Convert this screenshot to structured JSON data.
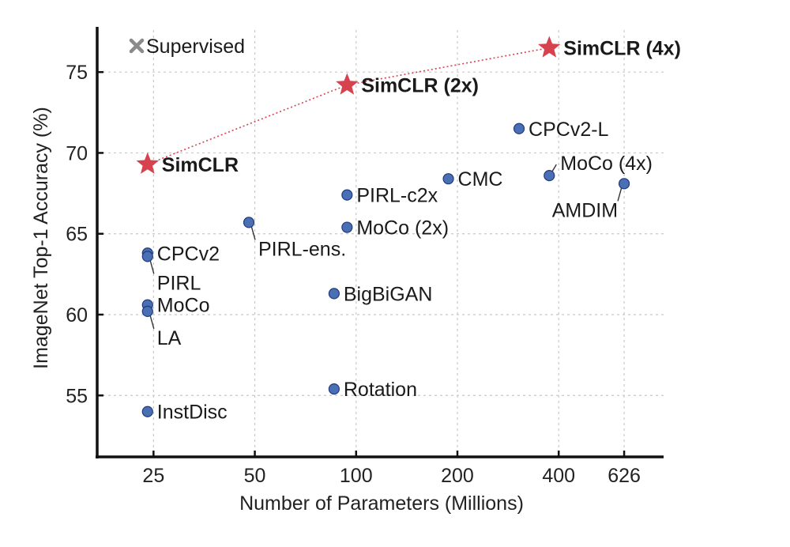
{
  "chart_data": {
    "type": "scatter",
    "xlabel": "Number of Parameters (Millions)",
    "ylabel": "ImageNet Top-1 Accuracy (%)",
    "x_scale": "log",
    "xlim": [
      17,
      820
    ],
    "ylim": [
      51.2,
      77.6
    ],
    "x_ticks": [
      {
        "value": 25,
        "label": "25"
      },
      {
        "value": 50,
        "label": "50"
      },
      {
        "value": 100,
        "label": "100"
      },
      {
        "value": 200,
        "label": "200"
      },
      {
        "value": 400,
        "label": "400"
      },
      {
        "value": 626,
        "label": "626"
      }
    ],
    "y_ticks": [
      {
        "value": 55,
        "label": "55"
      },
      {
        "value": 60,
        "label": "60"
      },
      {
        "value": 65,
        "label": "65"
      },
      {
        "value": 70,
        "label": "70"
      },
      {
        "value": 75,
        "label": "75"
      }
    ],
    "grid": true,
    "colors": {
      "points": "#4a6fb5",
      "simclr": "#d6434f",
      "supervised": "#8a8a8a"
    },
    "legend_entry": {
      "label": "Supervised",
      "marker": "x",
      "color": "#8a8a8a",
      "position": "top-left"
    },
    "simclr_series": [
      {
        "label": "SimCLR",
        "x": 24,
        "y": 69.3
      },
      {
        "label": "SimCLR (2x)",
        "x": 94,
        "y": 74.2
      },
      {
        "label": "SimCLR (4x)",
        "x": 375,
        "y": 76.5
      }
    ],
    "points": [
      {
        "label": "CPCv2",
        "x": 24,
        "y": 63.8,
        "label_pos": "right",
        "leader": false
      },
      {
        "label": "PIRL",
        "x": 24,
        "y": 63.6,
        "label_pos": "below-right",
        "leader": true
      },
      {
        "label": "MoCo",
        "x": 24,
        "y": 60.6,
        "label_pos": "right",
        "leader": false
      },
      {
        "label": "LA",
        "x": 24,
        "y": 60.2,
        "label_pos": "below-right",
        "leader": true
      },
      {
        "label": "InstDisc",
        "x": 24,
        "y": 54.0,
        "label_pos": "right",
        "leader": false
      },
      {
        "label": "PIRL-ens.",
        "x": 48,
        "y": 65.7,
        "label_pos": "below-right",
        "leader": true
      },
      {
        "label": "PIRL-c2x",
        "x": 94,
        "y": 67.4,
        "label_pos": "right",
        "leader": false
      },
      {
        "label": "MoCo (2x)",
        "x": 94,
        "y": 65.4,
        "label_pos": "right",
        "leader": false
      },
      {
        "label": "BigBiGAN",
        "x": 86,
        "y": 61.3,
        "label_pos": "right",
        "leader": false
      },
      {
        "label": "Rotation",
        "x": 86,
        "y": 55.4,
        "label_pos": "right",
        "leader": false
      },
      {
        "label": "CMC",
        "x": 188,
        "y": 68.4,
        "label_pos": "right",
        "leader": false
      },
      {
        "label": "CPCv2-L",
        "x": 305,
        "y": 71.5,
        "label_pos": "right",
        "leader": false
      },
      {
        "label": "MoCo (4x)",
        "x": 375,
        "y": 68.6,
        "label_pos": "above-right",
        "leader": true
      },
      {
        "label": "AMDIM",
        "x": 626,
        "y": 68.1,
        "label_pos": "below-left",
        "leader": true
      }
    ]
  }
}
